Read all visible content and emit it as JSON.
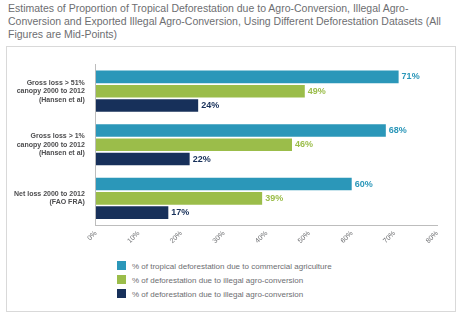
{
  "chart_data": {
    "type": "bar",
    "orientation": "horizontal",
    "title": "Estimates of Proportion of Tropical Deforestation due to Agro-Conversion, Illegal Agro-Conversion and Exported Illegal Agro-Conversion, Using Different Deforestation Datasets (All Figures are Mid-Points)",
    "categories": [
      [
        "Gross loss > 51%",
        "canopy 2000 to 2012",
        "(Hansen et al)"
      ],
      [
        "Gross loss > 1%",
        "canopy 2000 to 2012",
        "(Hansen et al)"
      ],
      [
        "Net loss 2000 to 2012",
        "(FAO FRA)"
      ]
    ],
    "series": [
      {
        "name": "% of tropical deforestation due to commercial agriculture",
        "color": "#2b97b9",
        "values": [
          71,
          68,
          60
        ],
        "value_labels": [
          "71%",
          "68%",
          "60%"
        ]
      },
      {
        "name": "% of deforestation due to illegal agro-conversion",
        "color": "#9bbd4a",
        "values": [
          49,
          46,
          39
        ],
        "value_labels": [
          "49%",
          "46%",
          "39%"
        ]
      },
      {
        "name": "% of deforestation due to illegal agro-conversion",
        "color": "#17305a",
        "values": [
          24,
          22,
          17
        ],
        "value_labels": [
          "24%",
          "22%",
          "17%"
        ]
      }
    ],
    "xlim": [
      0,
      80
    ],
    "xticks": [
      {
        "value": 0,
        "label": "0%"
      },
      {
        "value": 10,
        "label": "10%"
      },
      {
        "value": 20,
        "label": "20%"
      },
      {
        "value": 30,
        "label": "30%"
      },
      {
        "value": 40,
        "label": "40%"
      },
      {
        "value": 50,
        "label": "50%"
      },
      {
        "value": 60,
        "label": "60%"
      },
      {
        "value": 70,
        "label": "70%"
      },
      {
        "value": 80,
        "label": "80%"
      }
    ],
    "grid": false,
    "data_labels": true,
    "legend": "bottom"
  }
}
